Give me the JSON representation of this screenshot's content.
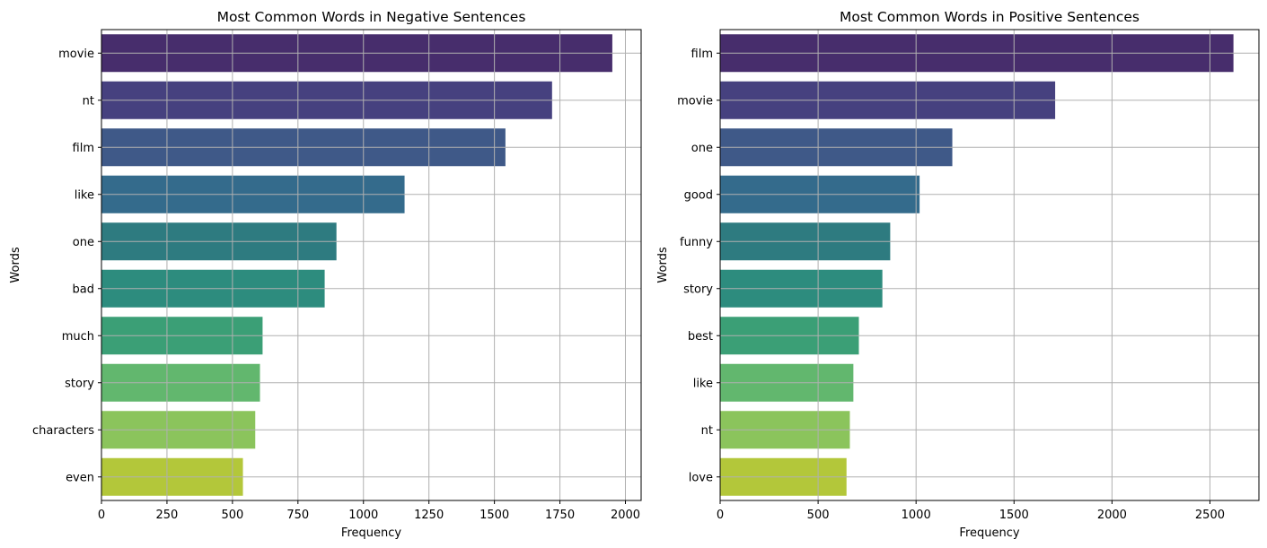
{
  "chart_data": [
    {
      "type": "bar",
      "orientation": "horizontal",
      "title": "Most Common Words in Negative Sentences",
      "xlabel": "Frequency",
      "ylabel": "Words",
      "categories": [
        "movie",
        "nt",
        "film",
        "like",
        "one",
        "bad",
        "much",
        "story",
        "characters",
        "even"
      ],
      "values": [
        1950,
        1720,
        1542,
        1157,
        897,
        852,
        615,
        605,
        587,
        540
      ],
      "xlim": [
        0,
        2060
      ],
      "xticks": [
        0,
        250,
        500,
        750,
        1000,
        1250,
        1500,
        1750,
        2000
      ],
      "grid": true,
      "colors": [
        "#472d6c",
        "#46417f",
        "#3f5988",
        "#346b8c",
        "#2e7b80",
        "#2d8c7e",
        "#3b9f76",
        "#62b76e",
        "#8bc45c",
        "#b3c73a"
      ]
    },
    {
      "type": "bar",
      "orientation": "horizontal",
      "title": "Most Common Words in Positive Sentences",
      "xlabel": "Frequency",
      "ylabel": "Words",
      "categories": [
        "film",
        "movie",
        "one",
        "good",
        "funny",
        "story",
        "best",
        "like",
        "nt",
        "love"
      ],
      "values": [
        2620,
        1710,
        1185,
        1018,
        868,
        828,
        708,
        680,
        662,
        645
      ],
      "xlim": [
        0,
        2750
      ],
      "xticks": [
        0,
        500,
        1000,
        1500,
        2000,
        2500
      ],
      "grid": true,
      "colors": [
        "#472d6c",
        "#46417f",
        "#3f5988",
        "#346b8c",
        "#2e7b80",
        "#2d8c7e",
        "#3b9f76",
        "#62b76e",
        "#8bc45c",
        "#b3c73a"
      ]
    }
  ]
}
